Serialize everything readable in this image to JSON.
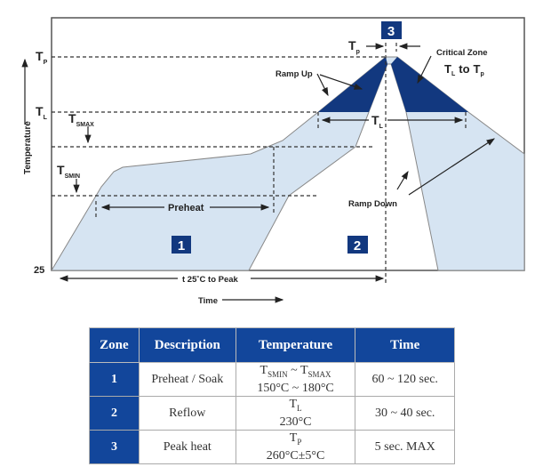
{
  "diagram": {
    "y_axis_label": "Temperature",
    "x_axis_label": "Time",
    "levels": {
      "tp": "T",
      "tp_sub": "P",
      "tl": "T",
      "tl_sub": "L",
      "tsmax": "T",
      "tsmax_sub": "SMAX",
      "tsmin": "T",
      "tsmin_sub": "SMIN",
      "base": "25"
    },
    "preheat_label": "Preheat",
    "tl_span_label": "T",
    "tl_span_sub": "L",
    "tp_span_label": "T",
    "tp_span_sub": "p",
    "ramp_up_label": "Ramp Up",
    "ramp_down_label": "Ramp Down",
    "critical_zone_label": "Critical Zone",
    "critical_zone_range": {
      "a": "T",
      "a_sub": "L",
      "to": "to",
      "b": "T",
      "b_sub": "p"
    },
    "time_span_label": "t 25˚C to Peak",
    "zones": [
      "1",
      "2",
      "3"
    ],
    "colors": {
      "fill": "#d6e4f2",
      "critical": "#12387f",
      "badge": "#12387f"
    }
  },
  "table": {
    "headers": [
      "Zone",
      "Description",
      "Temperature",
      "Time"
    ],
    "rows": [
      {
        "zone": "1",
        "description": "Preheat / Soak",
        "temp_line1_a": "T",
        "temp_line1_a_sub": "SMIN",
        "temp_line1_sep": " ~ ",
        "temp_line1_b": "T",
        "temp_line1_b_sub": "SMAX",
        "temp_line2": "150°C ~ 180°C",
        "time": "60 ~ 120 sec."
      },
      {
        "zone": "2",
        "description": "Reflow",
        "temp_line1_a": "T",
        "temp_line1_a_sub": "L",
        "temp_line2": "230°C",
        "time": "30 ~ 40 sec."
      },
      {
        "zone": "3",
        "description": "Peak heat",
        "temp_line1_a": "T",
        "temp_line1_a_sub": "P",
        "temp_line2": "260°C±5°C",
        "time": "5 sec. MAX"
      }
    ],
    "colors": {
      "header": "#12469b"
    }
  }
}
